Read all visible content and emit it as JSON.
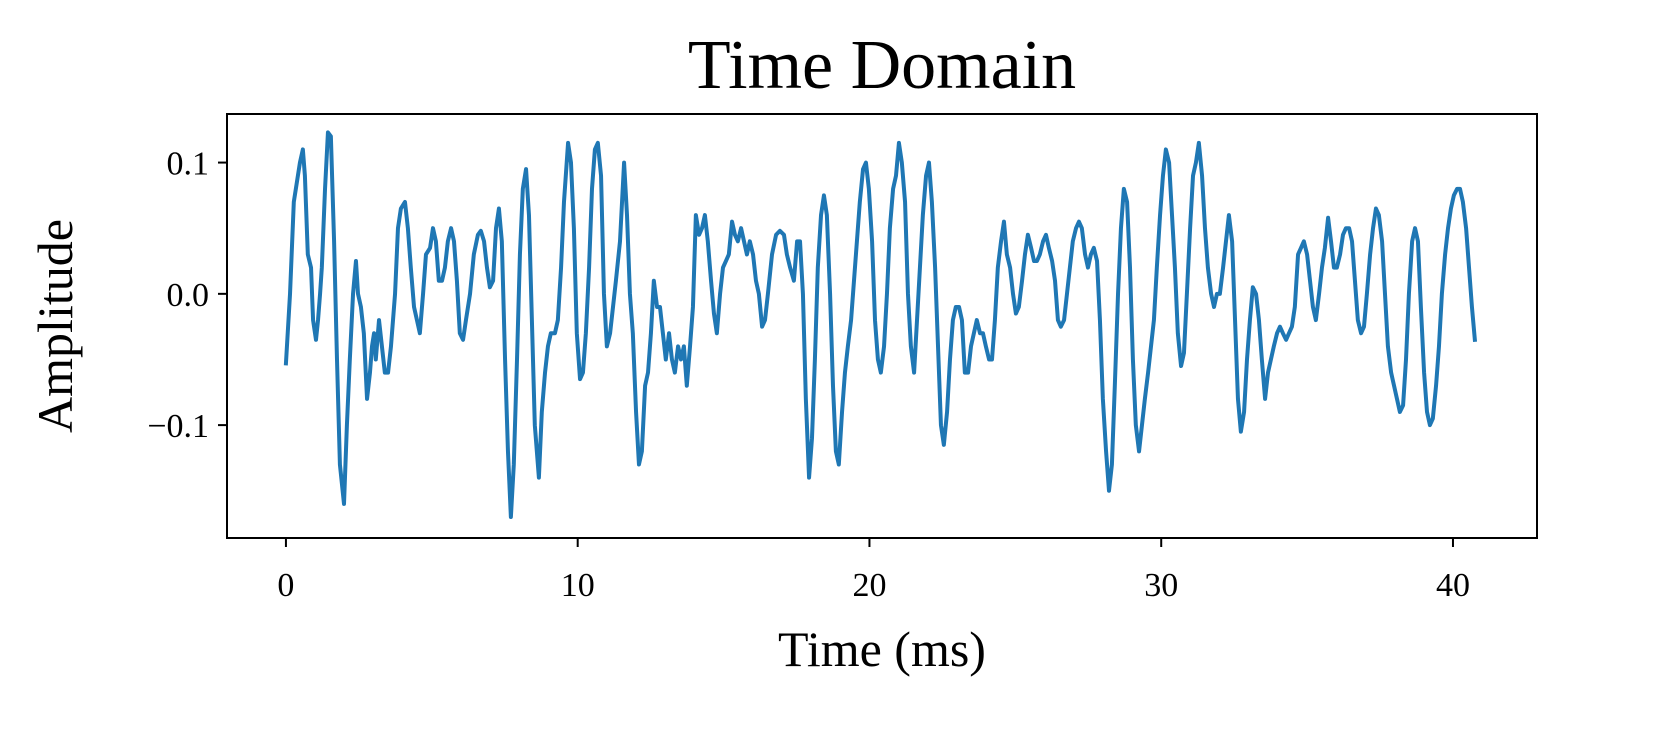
{
  "chart_data": {
    "type": "line",
    "title": "Time Domain",
    "xlabel": "Time (ms)",
    "ylabel": "Amplitude",
    "color": "#1f77b4",
    "xlim": [
      -2.02,
      42.88
    ],
    "ylim": [
      -0.186,
      0.137
    ],
    "xticks": [
      0,
      10,
      20,
      30,
      40
    ],
    "yticks": [
      {
        "value": -0.1,
        "label": "−0.1"
      },
      {
        "value": 0,
        "label": "0.0"
      },
      0.1
    ],
    "x": [
      0,
      0.14,
      0.27,
      0.41,
      0.48,
      0.58,
      0.65,
      0.75,
      0.86,
      0.93,
      1.03,
      1.1,
      1.17,
      1.23,
      1.34,
      1.44,
      1.54,
      1.65,
      1.75,
      1.85,
      1.99,
      2.09,
      2.19,
      2.3,
      2.4,
      2.47,
      2.57,
      2.67,
      2.78,
      2.88,
      2.95,
      3.02,
      3.08,
      3.19,
      3.29,
      3.39,
      3.5,
      3.6,
      3.74,
      3.84,
      3.94,
      4.08,
      4.18,
      4.28,
      4.39,
      4.49,
      4.59,
      4.7,
      4.8,
      4.94,
      5.04,
      5.14,
      5.24,
      5.35,
      5.45,
      5.55,
      5.66,
      5.76,
      5.86,
      5.96,
      6.07,
      6.17,
      6.31,
      6.44,
      6.58,
      6.68,
      6.79,
      6.89,
      6.99,
      7.1,
      7.2,
      7.3,
      7.4,
      7.51,
      7.61,
      7.71,
      7.81,
      7.92,
      8.02,
      8.12,
      8.23,
      8.33,
      8.43,
      8.53,
      8.67,
      8.77,
      8.88,
      8.98,
      9.08,
      9.22,
      9.32,
      9.43,
      9.53,
      9.67,
      9.77,
      9.87,
      9.97,
      10.08,
      10.18,
      10.28,
      10.39,
      10.49,
      10.59,
      10.69,
      10.8,
      10.9,
      11.0,
      11.11,
      11.21,
      11.31,
      11.45,
      11.59,
      11.69,
      11.79,
      11.89,
      12.0,
      12.1,
      12.2,
      12.31,
      12.41,
      12.51,
      12.61,
      12.72,
      12.82,
      12.92,
      13.02,
      13.13,
      13.23,
      13.33,
      13.44,
      13.54,
      13.64,
      13.74,
      13.85,
      13.95,
      14.05,
      14.16,
      14.26,
      14.36,
      14.46,
      14.57,
      14.67,
      14.77,
      14.88,
      14.98,
      15.08,
      15.18,
      15.29,
      15.39,
      15.49,
      15.6,
      15.7,
      15.8,
      15.9,
      16.01,
      16.11,
      16.21,
      16.32,
      16.42,
      16.52,
      16.66,
      16.8,
      16.93,
      17.07,
      17.17,
      17.28,
      17.41,
      17.52,
      17.62,
      17.72,
      17.82,
      17.93,
      18.03,
      18.13,
      18.23,
      18.34,
      18.44,
      18.54,
      18.65,
      18.75,
      18.85,
      18.95,
      19.06,
      19.16,
      19.26,
      19.37,
      19.47,
      19.57,
      19.67,
      19.78,
      19.88,
      19.98,
      20.09,
      20.19,
      20.29,
      20.39,
      20.5,
      20.6,
      20.7,
      20.81,
      20.91,
      21.01,
      21.11,
      21.22,
      21.32,
      21.42,
      21.53,
      21.63,
      21.73,
      21.83,
      21.94,
      22.04,
      22.14,
      22.25,
      22.35,
      22.45,
      22.55,
      22.66,
      22.76,
      22.86,
      22.96,
      23.07,
      23.17,
      23.27,
      23.38,
      23.48,
      23.58,
      23.68,
      23.79,
      23.89,
      23.99,
      24.1,
      24.2,
      24.3,
      24.4,
      24.51,
      24.61,
      24.71,
      24.82,
      24.92,
      25.02,
      25.12,
      25.23,
      25.33,
      25.43,
      25.54,
      25.64,
      25.74,
      25.84,
      25.95,
      26.05,
      26.15,
      26.26,
      26.36,
      26.46,
      26.56,
      26.67,
      26.77,
      26.87,
      26.97,
      27.08,
      27.18,
      27.28,
      27.39,
      27.49,
      27.59,
      27.69,
      27.8,
      27.9,
      28.0,
      28.11,
      28.21,
      28.31,
      28.41,
      28.52,
      28.62,
      28.72,
      28.83,
      28.93,
      29.03,
      29.13,
      29.24,
      29.34,
      29.44,
      29.55,
      29.65,
      29.75,
      29.85,
      29.96,
      30.06,
      30.16,
      30.27,
      30.37,
      30.47,
      30.57,
      30.68,
      30.78,
      30.88,
      30.99,
      31.09,
      31.19,
      31.29,
      31.4,
      31.5,
      31.6,
      31.71,
      31.81,
      31.91,
      32.01,
      32.12,
      32.22,
      32.32,
      32.43,
      32.53,
      32.63,
      32.73,
      32.84,
      32.94,
      33.04,
      33.14,
      33.25,
      33.35,
      33.45,
      33.56,
      33.66,
      33.76,
      33.86,
      33.97,
      34.07,
      34.17,
      34.28,
      34.38,
      34.48,
      34.58,
      34.69,
      34.79,
      34.89,
      35.0,
      35.1,
      35.2,
      35.3,
      35.41,
      35.51,
      35.61,
      35.72,
      35.82,
      35.92,
      36.02,
      36.13,
      36.23,
      36.33,
      36.44,
      36.54,
      36.64,
      36.74,
      36.85,
      36.95,
      37.05,
      37.16,
      37.26,
      37.36,
      37.46,
      37.57,
      37.67,
      37.77,
      37.88,
      37.98,
      38.08,
      38.18,
      38.29,
      38.39,
      38.49,
      38.6,
      38.7,
      38.8,
      38.9,
      39.01,
      39.11,
      39.21,
      39.31,
      39.42,
      39.52,
      39.62,
      39.73,
      39.83,
      39.93,
      40.03,
      40.14,
      40.24,
      40.34,
      40.45,
      40.55,
      40.65,
      40.75
    ],
    "values": [
      -0.053,
      0,
      0.07,
      0.09,
      0.1,
      0.11,
      0.09,
      0.03,
      0.02,
      -0.02,
      -0.035,
      -0.02,
      0,
      0.02,
      0.08,
      0.123,
      0.12,
      0.04,
      -0.05,
      -0.13,
      -0.16,
      -0.1,
      -0.05,
      0,
      0.025,
      0,
      -0.01,
      -0.03,
      -0.08,
      -0.06,
      -0.04,
      -0.03,
      -0.05,
      -0.02,
      -0.04,
      -0.06,
      -0.06,
      -0.04,
      0,
      0.05,
      0.065,
      0.07,
      0.05,
      0.02,
      -0.01,
      -0.02,
      -0.03,
      0,
      0.03,
      0.035,
      0.05,
      0.04,
      0.01,
      0.01,
      0.02,
      0.04,
      0.05,
      0.04,
      0.01,
      -0.03,
      -0.035,
      -0.02,
      0,
      0.03,
      0.045,
      0.048,
      0.04,
      0.02,
      0.005,
      0.01,
      0.05,
      0.065,
      0.04,
      -0.05,
      -0.12,
      -0.17,
      -0.13,
      -0.05,
      0.03,
      0.08,
      0.095,
      0.06,
      -0.02,
      -0.1,
      -0.14,
      -0.09,
      -0.06,
      -0.04,
      -0.03,
      -0.03,
      -0.02,
      0.02,
      0.07,
      0.115,
      0.1,
      0.05,
      -0.03,
      -0.065,
      -0.06,
      -0.03,
      0.02,
      0.08,
      0.11,
      0.115,
      0.09,
      0,
      -0.04,
      -0.03,
      -0.01,
      0.01,
      0.04,
      0.1,
      0.06,
      0,
      -0.03,
      -0.09,
      -0.13,
      -0.12,
      -0.07,
      -0.06,
      -0.03,
      0.01,
      -0.01,
      -0.01,
      -0.03,
      -0.05,
      -0.03,
      -0.05,
      -0.06,
      -0.04,
      -0.05,
      -0.04,
      -0.07,
      -0.04,
      -0.01,
      0.06,
      0.045,
      0.05,
      0.06,
      0.04,
      0.01,
      -0.015,
      -0.03,
      0,
      0.02,
      0.025,
      0.03,
      0.055,
      0.045,
      0.04,
      0.05,
      0.04,
      0.03,
      0.04,
      0.03,
      0.01,
      0,
      -0.025,
      -0.02,
      0,
      0.03,
      0.045,
      0.048,
      0.045,
      0.03,
      0.02,
      0.01,
      0.04,
      0.04,
      0,
      -0.08,
      -0.14,
      -0.11,
      -0.05,
      0.02,
      0.06,
      0.075,
      0.06,
      0,
      -0.07,
      -0.12,
      -0.13,
      -0.09,
      -0.06,
      -0.04,
      -0.02,
      0.01,
      0.04,
      0.07,
      0.095,
      0.1,
      0.08,
      0.04,
      -0.02,
      -0.05,
      -0.06,
      -0.04,
      0,
      0.05,
      0.08,
      0.09,
      0.115,
      0.1,
      0.07,
      0,
      -0.04,
      -0.06,
      -0.02,
      0.02,
      0.06,
      0.09,
      0.1,
      0.07,
      0.02,
      -0.04,
      -0.1,
      -0.115,
      -0.09,
      -0.05,
      -0.02,
      -0.01,
      -0.01,
      -0.02,
      -0.06,
      -0.06,
      -0.04,
      -0.03,
      -0.02,
      -0.03,
      -0.03,
      -0.04,
      -0.05,
      -0.05,
      -0.02,
      0.02,
      0.04,
      0.055,
      0.03,
      0.02,
      0,
      -0.015,
      -0.01,
      0.01,
      0.03,
      0.045,
      0.035,
      0.025,
      0.025,
      0.03,
      0.04,
      0.045,
      0.035,
      0.025,
      0.01,
      -0.02,
      -0.025,
      -0.02,
      0,
      0.02,
      0.04,
      0.05,
      0.055,
      0.05,
      0.03,
      0.02,
      0.03,
      0.035,
      0.025,
      -0.02,
      -0.08,
      -0.12,
      -0.15,
      -0.13,
      -0.07,
      0,
      0.05,
      0.08,
      0.07,
      0.02,
      -0.05,
      -0.1,
      -0.12,
      -0.1,
      -0.08,
      -0.06,
      -0.04,
      -0.02,
      0.02,
      0.06,
      0.09,
      0.11,
      0.1,
      0.06,
      0.02,
      -0.03,
      -0.055,
      -0.045,
      0,
      0.05,
      0.09,
      0.1,
      0.115,
      0.09,
      0.05,
      0.02,
      0,
      -0.01,
      0,
      0,
      0.02,
      0.04,
      0.06,
      0.04,
      -0.02,
      -0.08,
      -0.105,
      -0.09,
      -0.05,
      -0.02,
      0.005,
      0,
      -0.02,
      -0.05,
      -0.08,
      -0.06,
      -0.05,
      -0.04,
      -0.03,
      -0.025,
      -0.03,
      -0.035,
      -0.03,
      -0.025,
      -0.01,
      0.03,
      0.035,
      0.04,
      0.03,
      0.01,
      -0.01,
      -0.02,
      0,
      0.02,
      0.035,
      0.058,
      0.04,
      0.02,
      0.02,
      0.03,
      0.045,
      0.05,
      0.05,
      0.04,
      0.01,
      -0.02,
      -0.03,
      -0.025,
      0,
      0.03,
      0.05,
      0.065,
      0.06,
      0.04,
      0,
      -0.04,
      -0.06,
      -0.07,
      -0.08,
      -0.09,
      -0.085,
      -0.05,
      0,
      0.04,
      0.05,
      0.04,
      -0.01,
      -0.06,
      -0.09,
      -0.1,
      -0.095,
      -0.07,
      -0.04,
      0,
      0.03,
      0.05,
      0.065,
      0.075,
      0.08,
      0.08,
      0.07,
      0.05,
      0.02,
      -0.01,
      -0.035
    ]
  }
}
